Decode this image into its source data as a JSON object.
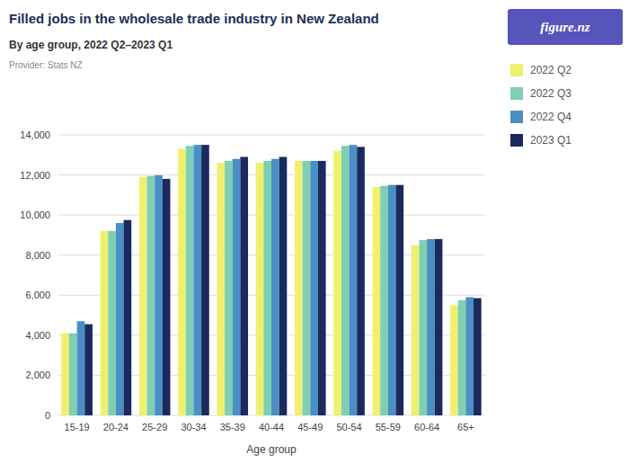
{
  "chart_data": {
    "type": "bar",
    "title": "Filled jobs in the wholesale trade industry in New Zealand",
    "subtitle": "By age group, 2022 Q2–2023 Q1",
    "annotations": [
      "Provider: Stats NZ",
      "figure.nz"
    ],
    "x_label": "Age group",
    "categories": [
      "15-19",
      "20-24",
      "25-29",
      "30-34",
      "35-39",
      "40-44",
      "45-49",
      "50-54",
      "55-59",
      "60-64",
      "65+"
    ],
    "series": [
      {
        "name": "2022 Q2",
        "color": "#f0f06e",
        "values": [
          4100,
          9200,
          11900,
          13300,
          12600,
          12600,
          12700,
          13200,
          11400,
          8500,
          5500
        ]
      },
      {
        "name": "2022 Q3",
        "color": "#7ecfb3",
        "values": [
          4100,
          9200,
          11950,
          13450,
          12700,
          12700,
          12700,
          13450,
          11450,
          8750,
          5750
        ]
      },
      {
        "name": "2022 Q4",
        "color": "#4a90c4",
        "values": [
          4700,
          9600,
          11980,
          13500,
          12800,
          12800,
          12700,
          13500,
          11500,
          8800,
          5900
        ]
      },
      {
        "name": "2023 Q1",
        "color": "#1a2a5e",
        "values": [
          4550,
          9750,
          11800,
          13500,
          12900,
          12900,
          12700,
          13400,
          11500,
          8800,
          5850
        ]
      }
    ],
    "ylim": [
      0,
      14000
    ],
    "yticks": [
      0,
      {
        "value": 2000,
        "label": "2,000"
      },
      {
        "value": 4000,
        "label": "4,000"
      },
      {
        "value": 6000,
        "label": "6,000"
      },
      {
        "value": 8000,
        "label": "8,000"
      },
      {
        "value": 10000,
        "label": "10,000"
      },
      {
        "value": 12000,
        "label": "12,000"
      },
      {
        "value": 14000,
        "label": "14,000"
      }
    ],
    "grid": true,
    "legend": "right"
  }
}
